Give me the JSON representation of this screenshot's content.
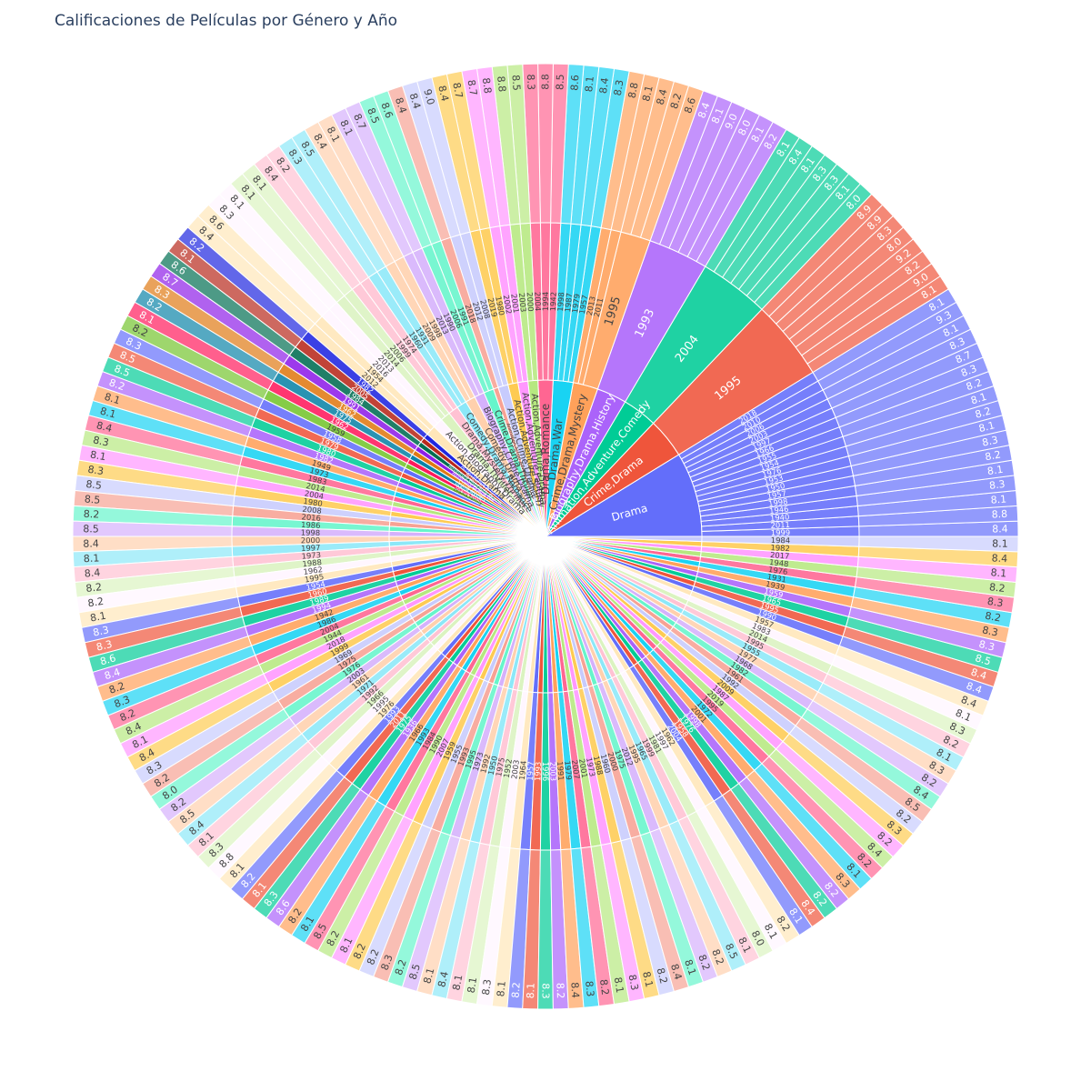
{
  "chart_data": {
    "type": "sunburst",
    "title": "Calificaciones de Películas por Género y Año",
    "levels": [
      "genre",
      "year",
      "rating"
    ],
    "genres": [
      {
        "name": "Drama",
        "color": "#636efa",
        "years": [
          {
            "year": "1999",
            "ratings": [
              "8.4"
            ]
          },
          {
            "year": "2011",
            "ratings": [
              "8.8"
            ]
          },
          {
            "year": "1940",
            "ratings": [
              "8.1"
            ]
          },
          {
            "year": "1946",
            "ratings": [
              "8.3"
            ]
          },
          {
            "year": "1998",
            "ratings": [
              "8.1"
            ]
          },
          {
            "year": "1957",
            "ratings": [
              "8.2"
            ]
          },
          {
            "year": "1950",
            "ratings": [
              "8.3"
            ]
          },
          {
            "year": "1953",
            "ratings": [
              "8.1"
            ]
          },
          {
            "year": "1976",
            "ratings": [
              "8.2"
            ]
          },
          {
            "year": "1954",
            "ratings": [
              "8.1"
            ]
          },
          {
            "year": "1955",
            "ratings": [
              "8.2"
            ]
          },
          {
            "year": "1966",
            "ratings": [
              "8.3"
            ]
          },
          {
            "year": "1997",
            "ratings": [
              "8.7"
            ]
          },
          {
            "year": "2003",
            "ratings": [
              "8.3"
            ]
          },
          {
            "year": "2006",
            "ratings": [
              "8.1"
            ]
          },
          {
            "year": "2010",
            "ratings": [
              "9.3"
            ]
          },
          {
            "year": "2018",
            "ratings": [
              "8.1"
            ]
          }
        ]
      },
      {
        "name": "Crime,Drama",
        "color": "#ef553b",
        "years": [
          {
            "year": "1995",
            "ratings": [
              "8.1",
              "9.0",
              "8.2",
              "9.2",
              "8.0",
              "8.3",
              "8.9",
              "8.9"
            ]
          }
        ]
      },
      {
        "name": "Animation,Adventure,Comedy",
        "color": "#00cc96",
        "years": [
          {
            "year": "2004",
            "ratings": [
              "8.0",
              "8.1",
              "8.3",
              "8.3",
              "8.1",
              "8.4",
              "8.1"
            ]
          }
        ]
      },
      {
        "name": "Biography,Drama,History",
        "color": "#ab63fa",
        "years": [
          {
            "year": "1993",
            "ratings": [
              "8.2",
              "8.1",
              "8.0",
              "9.0",
              "8.1",
              "8.4"
            ]
          }
        ]
      },
      {
        "name": "Crime,Drama,Mystery",
        "color": "#ffa15a",
        "years": [
          {
            "year": "1995",
            "ratings": [
              "8.6",
              "8.2",
              "8.4"
            ]
          },
          {
            "year": "2011",
            "ratings": [
              "8.1"
            ]
          },
          {
            "year": "2013",
            "ratings": [
              "8.8"
            ]
          }
        ]
      },
      {
        "name": "Drama,War",
        "color": "#19d3f3",
        "years": [
          {
            "year": "1957",
            "ratings": [
              "8.3"
            ]
          },
          {
            "year": "1979",
            "ratings": [
              "8.4"
            ]
          },
          {
            "year": "1987",
            "ratings": [
              "8.1"
            ]
          },
          {
            "year": "1998",
            "ratings": [
              "8.6"
            ]
          }
        ]
      },
      {
        "name": "Drama,Romance",
        "color": "#ff6692",
        "years": [
          {
            "year": "1942",
            "ratings": [
              "8.5"
            ]
          },
          {
            "year": "1994",
            "ratings": [
              "8.8"
            ]
          },
          {
            "year": "2004",
            "ratings": [
              "8.3"
            ]
          }
        ]
      },
      {
        "name": "Action,Adventure,Drama",
        "color": "#b6e880",
        "years": [
          {
            "year": "2000",
            "ratings": [
              "8.5"
            ]
          },
          {
            "year": "2003",
            "ratings": [
              "8.8"
            ]
          }
        ]
      },
      {
        "name": "Action,Adventure,Fantasy",
        "color": "#ff97ff",
        "years": [
          {
            "year": "2001",
            "ratings": [
              "8.8"
            ]
          },
          {
            "year": "2002",
            "ratings": [
              "8.7"
            ]
          }
        ]
      },
      {
        "name": "Action,Adventure,Sci-Fi",
        "color": "#fecb52",
        "years": [
          {
            "year": "1980",
            "ratings": [
              "8.7"
            ]
          },
          {
            "year": "2019",
            "ratings": [
              "8.4"
            ]
          }
        ]
      },
      {
        "name": "Action,Crime,Drama",
        "color": "#c7cbfd",
        "years": [
          {
            "year": "2008",
            "ratings": [
              "9.0"
            ]
          },
          {
            "year": "2012",
            "ratings": [
              "8.4"
            ]
          }
        ]
      },
      {
        "name": "Animation,Action,Adventure",
        "color": "#f7a294",
        "years": [
          {
            "year": "2018",
            "ratings": [
              "8.4"
            ]
          }
        ]
      },
      {
        "name": "Crime,Drama,Thriller",
        "color": "#66f5cb",
        "years": [
          {
            "year": "1991",
            "ratings": [
              "8.6"
            ]
          },
          {
            "year": "2006",
            "ratings": [
              "8.5"
            ]
          }
        ]
      },
      {
        "name": "Biography,Crime,Drama",
        "color": "#d5b1fc",
        "years": [
          {
            "year": "1990",
            "ratings": [
              "8.7"
            ]
          },
          {
            "year": "2013",
            "ratings": [
              "8.1"
            ]
          }
        ]
      },
      {
        "name": "Comedy,Drama",
        "color": "#ffd0ad",
        "years": [
          {
            "year": "1998",
            "ratings": [
              "8.1"
            ]
          },
          {
            "year": "2009",
            "ratings": [
              "8.4"
            ]
          }
        ]
      },
      {
        "name": "Comedy,Drama,Romance",
        "color": "#8ce8f8",
        "years": [
          {
            "year": "1931",
            "ratings": [
              "8.5"
            ]
          },
          {
            "year": "1960",
            "ratings": [
              "8.3"
            ]
          }
        ]
      },
      {
        "name": "Drama,Mystery,Thriller",
        "color": "#ffc2d3",
        "years": [
          {
            "year": "1974",
            "ratings": [
              "8.2"
            ]
          },
          {
            "year": "1999",
            "ratings": [
              "8.4"
            ]
          }
        ]
      },
      {
        "name": "Drama,Thriller",
        "color": "#dbf3c0",
        "years": [
          {
            "year": "2006",
            "ratings": [
              "8.1"
            ]
          },
          {
            "year": "2014",
            "ratings": [
              "8.1"
            ]
          }
        ]
      },
      {
        "name": "Action,Biography,Drama",
        "color": "#fff5ff",
        "years": [
          {
            "year": "2013",
            "ratings": [
              "8.1"
            ]
          },
          {
            "year": "2016",
            "ratings": [
              "8.3"
            ]
          }
        ]
      },
      {
        "name": "Action,Drama",
        "color": "#ffe6b9",
        "years": [
          {
            "year": "1954",
            "ratings": [
              "8.6"
            ]
          },
          {
            "year": "2012",
            "ratings": [
              "8.4"
            ]
          }
        ]
      },
      {
        "name": "Action,Drama,Sci-Fi",
        "color": "#1f26e0",
        "years": [
          {
            "year": "1982",
            "ratings": [
              "8.2"
            ]
          }
        ]
      },
      {
        "name": "Action,Sci-Fi",
        "color": "#b8291c",
        "years": [
          {
            "year": "2005",
            "ratings": [
              "8.1"
            ]
          }
        ]
      },
      {
        "name": "Adventure,Biography,Drama",
        "color": "#006e52",
        "years": [
          {
            "year": "1984",
            "ratings": [
              "8.6"
            ]
          }
        ]
      },
      {
        "name": "Adventure,Drama,War",
        "color": "#8e1ee8",
        "years": [
          {
            "year": "1991",
            "ratings": [
              "8.7"
            ]
          }
        ]
      },
      {
        "name": "Crime,Thriller",
        "color": "#e07a14",
        "years": [
          {
            "year": "1962",
            "ratings": [
              "8.3"
            ]
          }
        ]
      },
      {
        "name": "Drama,Mystery",
        "color": "#0c84a8",
        "years": [
          {
            "year": "1975",
            "ratings": [
              "8.2"
            ]
          }
        ]
      },
      {
        "name": "Drama,Music",
        "color": "#ff1a5c",
        "years": [
          {
            "year": "1962",
            "ratings": [
              "8.1"
            ]
          }
        ]
      },
      {
        "name": "Drama,Family",
        "color": "#74c52e",
        "years": [
          {
            "year": "1959",
            "ratings": [
              "8.2"
            ]
          }
        ]
      }
    ],
    "other_genres_color_cycle": [
      "#636efa",
      "#ef553b",
      "#00cc96",
      "#ab63fa",
      "#ffa15a",
      "#19d3f3",
      "#ff6692",
      "#b6e880",
      "#ff97ff",
      "#fecb52",
      "#c7cbfd",
      "#f7a294",
      "#66f5cb",
      "#d5b1fc",
      "#ffd0ad",
      "#8ce8f8",
      "#ffc2d3",
      "#dbf3c0",
      "#fff5ff",
      "#ffe6b9"
    ],
    "other_segments": [
      {
        "year": "1958",
        "rating": "8.3"
      },
      {
        "year": "1979",
        "rating": "8.5"
      },
      {
        "year": "1980",
        "rating": "8.5"
      },
      {
        "year": "1982",
        "rating": "8.2"
      },
      {
        "year": "1949",
        "rating": "8.1"
      },
      {
        "year": "1973",
        "rating": "8.1"
      },
      {
        "year": "1983",
        "rating": "8.4"
      },
      {
        "year": "2014",
        "rating": "8.3"
      },
      {
        "year": "2004",
        "rating": "8.1"
      },
      {
        "year": "1980",
        "rating": "8.3"
      },
      {
        "year": "2008",
        "rating": "8.5"
      },
      {
        "year": "2016",
        "rating": "8.5"
      },
      {
        "year": "1986",
        "rating": "8.2"
      },
      {
        "year": "1998",
        "rating": "8.5"
      },
      {
        "year": "2000",
        "rating": "8.4"
      },
      {
        "year": "1997",
        "rating": "8.1"
      },
      {
        "year": "1973",
        "rating": "8.4"
      },
      {
        "year": "1988",
        "rating": "8.2"
      },
      {
        "year": "1962",
        "rating": "8.2"
      },
      {
        "year": "1995",
        "rating": "8.1"
      },
      {
        "year": "1954",
        "rating": "8.3"
      },
      {
        "year": "1960",
        "rating": "8.3"
      },
      {
        "year": "1989",
        "rating": "8.6"
      },
      {
        "year": "1994",
        "rating": "8.4"
      },
      {
        "year": "1942",
        "rating": "8.2"
      },
      {
        "year": "1986",
        "rating": "8.3"
      },
      {
        "year": "2004",
        "rating": "8.2"
      },
      {
        "year": "1944",
        "rating": "8.4"
      },
      {
        "year": "2018",
        "rating": "8.1"
      },
      {
        "year": "1999",
        "rating": "8.4"
      },
      {
        "year": "1969",
        "rating": "8.3"
      },
      {
        "year": "1975",
        "rating": "8.2"
      },
      {
        "year": "1976",
        "rating": "8.0"
      },
      {
        "year": "2003",
        "rating": "8.2"
      },
      {
        "year": "1961",
        "rating": "8.5"
      },
      {
        "year": "1971",
        "rating": "8.4"
      },
      {
        "year": "1992",
        "rating": "8.1"
      },
      {
        "year": "1966",
        "rating": "8.3"
      },
      {
        "year": "1995",
        "rating": "8.8"
      },
      {
        "year": "1976",
        "rating": "8.1"
      },
      {
        "year": "1993",
        "rating": "8.2"
      },
      {
        "year": "2011",
        "rating": "8.1"
      },
      {
        "year": "1975",
        "rating": "8.3"
      },
      {
        "year": "1936",
        "rating": "8.6"
      },
      {
        "year": "1966",
        "rating": "8.2"
      },
      {
        "year": "1993",
        "rating": "8.1"
      },
      {
        "year": "1984",
        "rating": "8.5"
      },
      {
        "year": "1990",
        "rating": "8.2"
      },
      {
        "year": "2007",
        "rating": "8.1"
      },
      {
        "year": "1959",
        "rating": "8.2"
      },
      {
        "year": "1955",
        "rating": "8.2"
      },
      {
        "year": "1993",
        "rating": "8.3"
      },
      {
        "year": "1995",
        "rating": "8.2"
      },
      {
        "year": "1973",
        "rating": "8.5"
      },
      {
        "year": "1992",
        "rating": "8.1"
      },
      {
        "year": "1950",
        "rating": "8.4"
      },
      {
        "year": "1975",
        "rating": "8.1"
      },
      {
        "year": "1952",
        "rating": "8.1"
      },
      {
        "year": "2003",
        "rating": "8.3"
      },
      {
        "year": "1964",
        "rating": "8.1"
      },
      {
        "year": "1957",
        "rating": "8.2"
      },
      {
        "year": "1993",
        "rating": "8.1"
      },
      {
        "year": "1996",
        "rating": "8.3"
      },
      {
        "year": "2003",
        "rating": "8.2"
      },
      {
        "year": "1991",
        "rating": "8.4"
      },
      {
        "year": "1979",
        "rating": "8.3"
      },
      {
        "year": "2007",
        "rating": "8.2"
      },
      {
        "year": "2001",
        "rating": "8.1"
      },
      {
        "year": "1973",
        "rating": "8.3"
      },
      {
        "year": "1988",
        "rating": "8.1"
      },
      {
        "year": "1960",
        "rating": "8.2"
      },
      {
        "year": "2000",
        "rating": "8.4"
      },
      {
        "year": "1975",
        "rating": "8.1"
      },
      {
        "year": "2012",
        "rating": "8.2"
      },
      {
        "year": "1995",
        "rating": "8.2"
      },
      {
        "year": "1965",
        "rating": "8.5"
      },
      {
        "year": "1999",
        "rating": "8.1"
      },
      {
        "year": "1981",
        "rating": "8.0"
      },
      {
        "year": "1997",
        "rating": "8.1"
      },
      {
        "year": "1962",
        "rating": "8.2"
      },
      {
        "year": "2004",
        "rating": "8.1"
      },
      {
        "year": "1958",
        "rating": "8.4"
      },
      {
        "year": "1976",
        "rating": "8.2"
      },
      {
        "year": "1998",
        "rating": "8.2"
      },
      {
        "year": "2001",
        "rating": "8.3"
      },
      {
        "year": "1972",
        "rating": "8.1"
      },
      {
        "year": "1995",
        "rating": "8.2"
      },
      {
        "year": "2019",
        "rating": "8.4"
      },
      {
        "year": "1987",
        "rating": "8.2"
      },
      {
        "year": "2009",
        "rating": "8.3"
      },
      {
        "year": "1992",
        "rating": "8.2"
      },
      {
        "year": "1961",
        "rating": "8.5"
      },
      {
        "year": "1982",
        "rating": "8.4"
      },
      {
        "year": "1968",
        "rating": "8.2"
      },
      {
        "year": "1977",
        "rating": "8.3"
      },
      {
        "year": "1955",
        "rating": "8.1"
      },
      {
        "year": "1995",
        "rating": "8.2"
      },
      {
        "year": "2014",
        "rating": "8.3"
      },
      {
        "year": "1983",
        "rating": "8.1"
      },
      {
        "year": "1957",
        "rating": "8.4"
      },
      {
        "year": "1990",
        "rating": "8.4"
      },
      {
        "year": "1995",
        "rating": "8.4"
      },
      {
        "year": "1965",
        "rating": "8.5"
      },
      {
        "year": "1959",
        "rating": "8.3"
      },
      {
        "year": "1939",
        "rating": "8.3"
      },
      {
        "year": "1931",
        "rating": "8.2"
      },
      {
        "year": "1976",
        "rating": "8.3"
      },
      {
        "year": "1948",
        "rating": "8.2"
      },
      {
        "year": "2017",
        "rating": "8.1"
      },
      {
        "year": "1982",
        "rating": "8.4"
      },
      {
        "year": "1984",
        "rating": "8.1"
      }
    ]
  }
}
